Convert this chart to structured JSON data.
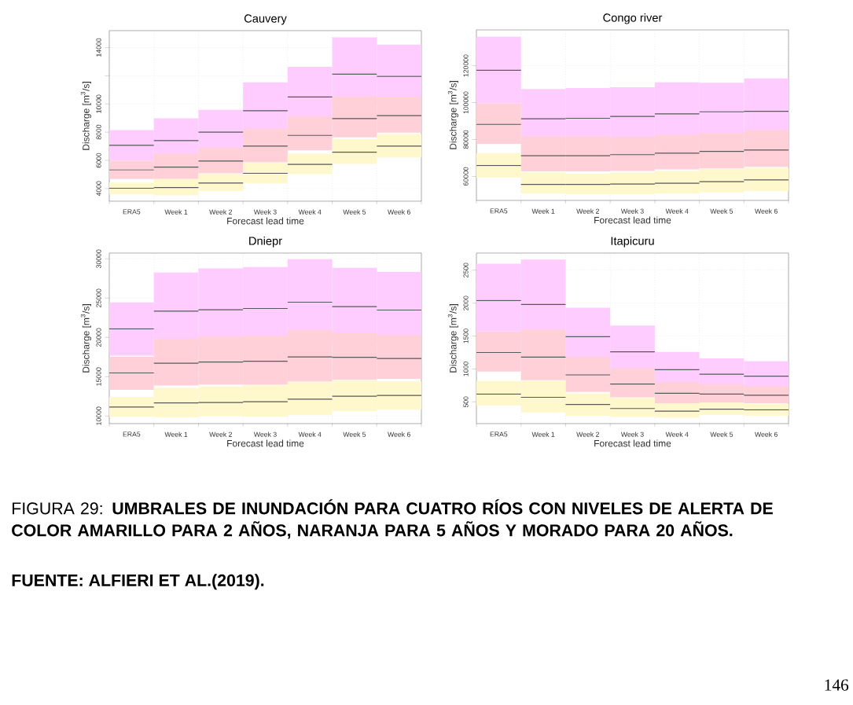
{
  "chart_data": [
    {
      "type": "box",
      "title": "Cauvery",
      "xlabel": "Forecast lead time",
      "ylabel": "Discharge [m$^{3}$/s]",
      "categories": [
        "ERA5",
        "Week 1",
        "Week 2",
        "Week 3",
        "Week 4",
        "Week 5",
        "Week 6"
      ],
      "ylim": [
        3100,
        15200
      ],
      "yticks": [
        4000,
        6000,
        8000,
        10000,
        {
          "value": 12000,
          "label": null
        },
        14000
      ],
      "grid": true,
      "series": [
        {
          "color": "#ffccff",
          "boxes": [
            {
              "low": 5970,
              "q1": 5970,
              "median": 7070,
              "q3": 8150,
              "high": 8150
            },
            {
              "low": 6100,
              "q1": 6100,
              "median": 7400,
              "q3": 8980,
              "high": 8980
            },
            {
              "low": 6570,
              "q1": 6570,
              "median": 8000,
              "q3": 9580,
              "high": 9580
            },
            {
              "low": 7660,
              "q1": 7660,
              "median": 9520,
              "q3": 11530,
              "high": 11530
            },
            {
              "low": 8680,
              "q1": 8680,
              "median": 10490,
              "q3": 12640,
              "high": 12640
            },
            {
              "low": 10000,
              "q1": 10000,
              "median": 12110,
              "q3": 14730,
              "high": 14730
            },
            {
              "low": 10040,
              "q1": 10040,
              "median": 11960,
              "q3": 14210,
              "high": 14210
            }
          ]
        },
        {
          "color": "#ffd0d8",
          "boxes": [
            {
              "low": 4670,
              "q1": 4670,
              "median": 5320,
              "q3": 5970,
              "high": 5970
            },
            {
              "low": 4670,
              "q1": 4670,
              "median": 5520,
              "q3": 6470,
              "high": 6470
            },
            {
              "low": 5080,
              "q1": 5080,
              "median": 5950,
              "q3": 6900,
              "high": 6900
            },
            {
              "low": 5860,
              "q1": 5860,
              "median": 7010,
              "q3": 8240,
              "high": 8240
            },
            {
              "low": 6710,
              "q1": 6710,
              "median": 7770,
              "q3": 9110,
              "high": 9110
            },
            {
              "low": 7630,
              "q1": 7630,
              "median": 8960,
              "q3": 10530,
              "high": 10530
            },
            {
              "low": 7960,
              "q1": 7960,
              "median": 9170,
              "q3": 10510,
              "high": 10510
            }
          ]
        },
        {
          "color": "#fff8cc",
          "boxes": [
            {
              "low": 3590,
              "q1": 3590,
              "median": 4020,
              "q3": 4430,
              "high": 4430
            },
            {
              "low": 3520,
              "q1": 3520,
              "median": 4070,
              "q3": 4670,
              "high": 4670
            },
            {
              "low": 3830,
              "q1": 3830,
              "median": 4390,
              "q3": 5040,
              "high": 5040
            },
            {
              "low": 4370,
              "q1": 4370,
              "median": 5080,
              "q3": 5820,
              "high": 5820
            },
            {
              "low": 5020,
              "q1": 5020,
              "median": 5710,
              "q3": 6470,
              "high": 6470
            },
            {
              "low": 5750,
              "q1": 5750,
              "median": 6580,
              "q3": 7500,
              "high": 7500
            },
            {
              "low": 6190,
              "q1": 6190,
              "median": 7010,
              "q3": 7870,
              "high": 7870
            }
          ]
        }
      ]
    },
    {
      "type": "box",
      "title": "Congo river",
      "xlabel": "Forecast lead time",
      "ylabel": "Discharge [m$^{3}$/s]",
      "categories": [
        "ERA5",
        "Week 1",
        "Week 2",
        "Week 3",
        "Week 4",
        "Week 5",
        "Week 6"
      ],
      "ylim": [
        47000,
        139400
      ],
      "yticks": [
        60000,
        80000,
        100000,
        120000
      ],
      "grid": true,
      "series": [
        {
          "color": "#ffccff",
          "boxes": [
            {
              "low": 99500,
              "q1": 99500,
              "median": 117500,
              "q3": 135700,
              "high": 135700
            },
            {
              "low": 77900,
              "q1": 77900,
              "median": 91200,
              "q3": 107400,
              "high": 107400
            },
            {
              "low": 78200,
              "q1": 78200,
              "median": 91500,
              "q3": 107900,
              "high": 107900
            },
            {
              "low": 78000,
              "q1": 78000,
              "median": 92500,
              "q3": 108300,
              "high": 108300
            },
            {
              "low": 79200,
              "q1": 79200,
              "median": 93900,
              "q3": 111000,
              "high": 111000
            },
            {
              "low": 80000,
              "q1": 80000,
              "median": 95000,
              "q3": 110800,
              "high": 110800
            },
            {
              "low": 80800,
              "q1": 80800,
              "median": 95300,
              "q3": 113100,
              "high": 113100
            }
          ]
        },
        {
          "color": "#ffd0d8",
          "boxes": [
            {
              "low": 77700,
              "q1": 77700,
              "median": 88200,
              "q3": 99500,
              "high": 99500
            },
            {
              "low": 62800,
              "q1": 62800,
              "median": 71200,
              "q3": 81700,
              "high": 81700
            },
            {
              "low": 62800,
              "q1": 62800,
              "median": 71200,
              "q3": 81700,
              "high": 81700
            },
            {
              "low": 63000,
              "q1": 63000,
              "median": 71800,
              "q3": 81400,
              "high": 81400
            },
            {
              "low": 63800,
              "q1": 63800,
              "median": 72600,
              "q3": 82500,
              "high": 82500
            },
            {
              "low": 64400,
              "q1": 64400,
              "median": 73600,
              "q3": 83500,
              "high": 83500
            },
            {
              "low": 65200,
              "q1": 65200,
              "median": 74300,
              "q3": 85100,
              "high": 85100
            }
          ]
        },
        {
          "color": "#fff8cc",
          "boxes": [
            {
              "low": 59300,
              "q1": 59300,
              "median": 65900,
              "q3": 72600,
              "high": 72600
            },
            {
              "low": 50700,
              "q1": 50700,
              "median": 55700,
              "q3": 62200,
              "high": 62200
            },
            {
              "low": 50300,
              "q1": 50300,
              "median": 55700,
              "q3": 61500,
              "high": 61500
            },
            {
              "low": 50300,
              "q1": 50300,
              "median": 55900,
              "q3": 62100,
              "high": 62100
            },
            {
              "low": 50700,
              "q1": 50700,
              "median": 56300,
              "q3": 63000,
              "high": 63000
            },
            {
              "low": 51400,
              "q1": 51400,
              "median": 57200,
              "q3": 64000,
              "high": 64000
            },
            {
              "low": 52000,
              "q1": 52000,
              "median": 58100,
              "q3": 64700,
              "high": 64700
            }
          ]
        }
      ]
    },
    {
      "type": "box",
      "title": "Dniepr",
      "xlabel": "Forecast lead time",
      "ylabel": "Discharge [m$^{3}$/s]",
      "categories": [
        "ERA5",
        "Week 1",
        "Week 2",
        "Week 3",
        "Week 4",
        "Week 5",
        "Week 6"
      ],
      "ylim": [
        9030,
        30730
      ],
      "yticks": [
        10000,
        15000,
        20000,
        25000,
        30000
      ],
      "grid": true,
      "series": [
        {
          "color": "#ffccff",
          "boxes": [
            {
              "low": 17690,
              "q1": 17690,
              "median": 21100,
              "q3": 24450,
              "high": 24450
            },
            {
              "low": 18730,
              "q1": 18730,
              "median": 23340,
              "q3": 28260,
              "high": 28260
            },
            {
              "low": 18930,
              "q1": 18930,
              "median": 23510,
              "q3": 28790,
              "high": 28790
            },
            {
              "low": 18730,
              "q1": 18730,
              "median": 23680,
              "q3": 28960,
              "high": 28960
            },
            {
              "low": 19530,
              "q1": 19530,
              "median": 24480,
              "q3": 29960,
              "high": 29960
            },
            {
              "low": 19200,
              "q1": 19200,
              "median": 23910,
              "q3": 28860,
              "high": 28860
            },
            {
              "low": 19330,
              "q1": 19330,
              "median": 23480,
              "q3": 28330,
              "high": 28330
            }
          ]
        },
        {
          "color": "#ffd0d8",
          "boxes": [
            {
              "low": 13340,
              "q1": 13340,
              "median": 15480,
              "q3": 17520,
              "high": 17520
            },
            {
              "low": 13880,
              "q1": 13880,
              "median": 16720,
              "q3": 19830,
              "high": 19830
            },
            {
              "low": 14010,
              "q1": 14010,
              "median": 16860,
              "q3": 20100,
              "high": 20100
            },
            {
              "low": 13980,
              "q1": 13980,
              "median": 16960,
              "q3": 20200,
              "high": 20200
            },
            {
              "low": 14380,
              "q1": 14380,
              "median": 17520,
              "q3": 20940,
              "high": 20940
            },
            {
              "low": 14610,
              "q1": 14610,
              "median": 17460,
              "q3": 20530,
              "high": 20530
            },
            {
              "low": 14720,
              "q1": 14720,
              "median": 17320,
              "q3": 20270,
              "high": 20270
            }
          ]
        },
        {
          "color": "#fff8cc",
          "boxes": [
            {
              "low": 9900,
              "q1": 9900,
              "median": 11140,
              "q3": 12440,
              "high": 12440
            },
            {
              "low": 9830,
              "q1": 9830,
              "median": 11670,
              "q3": 13580,
              "high": 13580
            },
            {
              "low": 9970,
              "q1": 9970,
              "median": 11710,
              "q3": 13750,
              "high": 13750
            },
            {
              "low": 9900,
              "q1": 9900,
              "median": 11810,
              "q3": 13910,
              "high": 13910
            },
            {
              "low": 10130,
              "q1": 10130,
              "median": 12140,
              "q3": 14310,
              "high": 14310
            },
            {
              "low": 10640,
              "q1": 10640,
              "median": 12510,
              "q3": 14510,
              "high": 14510
            },
            {
              "low": 10800,
              "q1": 10800,
              "median": 12610,
              "q3": 14410,
              "high": 14410
            }
          ]
        }
      ]
    },
    {
      "type": "box",
      "title": "Itapicuru",
      "xlabel": "Forecast lead time",
      "ylabel": "Discharge [m$^{3}$/s]",
      "categories": [
        "ERA5",
        "Week 1",
        "Week 2",
        "Week 3",
        "Week 4",
        "Week 5",
        "Week 6"
      ],
      "ylim": [
        170,
        2760
      ],
      "yticks": [
        500,
        1000,
        1500,
        2000,
        2500
      ],
      "grid": true,
      "series": [
        {
          "color": "#ffccff",
          "boxes": [
            {
              "low": 1570,
              "q1": 1570,
              "median": 2040,
              "q3": 2600,
              "high": 2600
            },
            {
              "low": 1430,
              "q1": 1430,
              "median": 1980,
              "q3": 2660,
              "high": 2660
            },
            {
              "low": 1070,
              "q1": 1070,
              "median": 1490,
              "q3": 1930,
              "high": 1930
            },
            {
              "low": 900,
              "q1": 900,
              "median": 1260,
              "q3": 1660,
              "high": 1660
            },
            {
              "low": 740,
              "q1": 740,
              "median": 990,
              "q3": 1260,
              "high": 1260
            },
            {
              "low": 720,
              "q1": 720,
              "median": 920,
              "q3": 1160,
              "high": 1160
            },
            {
              "low": 690,
              "q1": 690,
              "median": 890,
              "q3": 1120,
              "high": 1120
            }
          ]
        },
        {
          "color": "#ffd0d8",
          "boxes": [
            {
              "low": 960,
              "q1": 960,
              "median": 1250,
              "q3": 1570,
              "high": 1570
            },
            {
              "low": 830,
              "q1": 830,
              "median": 1180,
              "q3": 1600,
              "high": 1600
            },
            {
              "low": 650,
              "q1": 650,
              "median": 910,
              "q3": 1180,
              "high": 1180
            },
            {
              "low": 570,
              "q1": 570,
              "median": 770,
              "q3": 1010,
              "high": 1010
            },
            {
              "low": 480,
              "q1": 480,
              "median": 630,
              "q3": 800,
              "high": 800
            },
            {
              "low": 490,
              "q1": 490,
              "median": 620,
              "q3": 770,
              "high": 770
            },
            {
              "low": 480,
              "q1": 480,
              "median": 600,
              "q3": 740,
              "high": 740
            }
          ]
        },
        {
          "color": "#fff8cc",
          "boxes": [
            {
              "low": 440,
              "q1": 440,
              "median": 620,
              "q3": 820,
              "high": 820
            },
            {
              "low": 340,
              "q1": 340,
              "median": 570,
              "q3": 820,
              "high": 820
            },
            {
              "low": 290,
              "q1": 290,
              "median": 460,
              "q3": 630,
              "high": 630
            },
            {
              "low": 270,
              "q1": 270,
              "median": 400,
              "q3": 560,
              "high": 560
            },
            {
              "low": 260,
              "q1": 260,
              "median": 360,
              "q3": 480,
              "high": 480
            },
            {
              "low": 300,
              "q1": 300,
              "median": 390,
              "q3": 490,
              "high": 490
            },
            {
              "low": 290,
              "q1": 290,
              "median": 380,
              "q3": 470,
              "high": 470
            }
          ]
        }
      ],
      "annotations": [
        "FIGURA 29: **UMBRALES DE INUNDACIÓN PARA CUATRO RÍOS CON NIVELES DE ALERTA DE COLOR AMARILLO PARA 2 AÑOS, NARANJA PARA 5 AÑOS Y MORADO PARA 20 AÑOS.**",
        "FUENTE: ALFIERI ET AL.(2019).",
        "146"
      ]
    }
  ]
}
